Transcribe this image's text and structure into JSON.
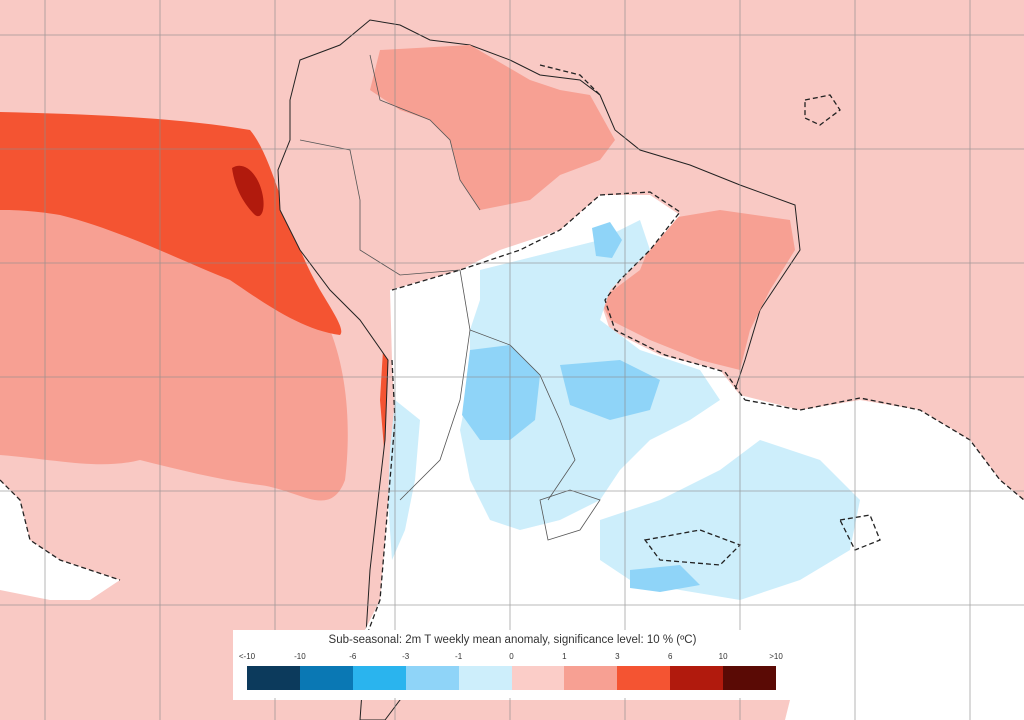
{
  "legend": {
    "title": "Sub-seasonal: 2m T weekly mean anomaly, significance level: 10 % (ºC)",
    "ticks": [
      "<-10",
      "-10",
      "-6",
      "-3",
      "-1",
      "0",
      "1",
      "3",
      "6",
      "10",
      ">10"
    ],
    "colors": [
      "#0c3a5c",
      "#0a78b4",
      "#2ab4ee",
      "#8fd4f8",
      "#cdeefb",
      "#fbcdc8",
      "#f7a093",
      "#f45432",
      "#b11a0d",
      "#5a0a05"
    ]
  },
  "map_colors": {
    "ocean_warm": "#f9c9c4",
    "warm_medium": "#f7a093",
    "warm_strong": "#f45432",
    "warm_extreme": "#b11a0d",
    "neutral": "#ffffff",
    "cool_light": "#cdeefb",
    "cool_medium": "#8fd4f8",
    "coast": "#222222",
    "grid": "#8c8c8c"
  }
}
